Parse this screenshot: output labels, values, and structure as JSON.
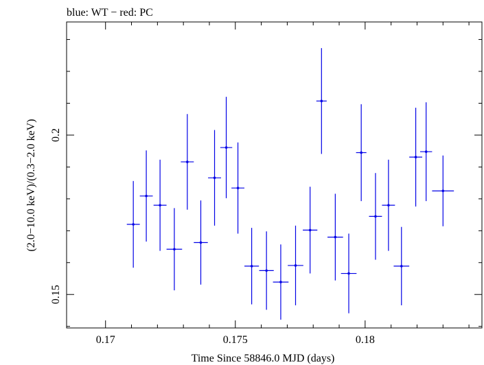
{
  "chart_data": {
    "type": "scatter",
    "title": "blue: WT − red: PC",
    "xlabel": "Time Since 58846.0 MJD (days)",
    "ylabel": "(2.0−10.0 keV)/(0.3−2.0 keV)",
    "xlim": [
      0.1685,
      0.1845
    ],
    "ylim": [
      0.1395,
      0.2355
    ],
    "x_ticks": [
      0.17,
      0.175,
      0.18
    ],
    "x_tick_labels": [
      "0.17",
      "0.175",
      "0.18"
    ],
    "y_ticks": [
      0.15,
      0.2
    ],
    "y_tick_labels": [
      "0.15",
      "0.2"
    ],
    "grid": false,
    "colors": {
      "WT": "#0000e6",
      "axis": "#000000"
    },
    "series": [
      {
        "name": "WT",
        "points": [
          {
            "x": 0.17107,
            "y": 0.172,
            "xerr": 0.00025,
            "yerr": 0.0136
          },
          {
            "x": 0.17157,
            "y": 0.1809,
            "xerr": 0.00025,
            "yerr": 0.0143
          },
          {
            "x": 0.1721,
            "y": 0.178,
            "xerr": 0.00025,
            "yerr": 0.0143
          },
          {
            "x": 0.17265,
            "y": 0.1642,
            "xerr": 0.0003,
            "yerr": 0.0129
          },
          {
            "x": 0.17315,
            "y": 0.1916,
            "xerr": 0.00025,
            "yerr": 0.015
          },
          {
            "x": 0.17367,
            "y": 0.1663,
            "xerr": 0.00027,
            "yerr": 0.0132
          },
          {
            "x": 0.1742,
            "y": 0.1866,
            "xerr": 0.00025,
            "yerr": 0.015
          },
          {
            "x": 0.17465,
            "y": 0.1961,
            "xerr": 0.00023,
            "yerr": 0.0159
          },
          {
            "x": 0.1751,
            "y": 0.1834,
            "xerr": 0.00025,
            "yerr": 0.0143
          },
          {
            "x": 0.17563,
            "y": 0.1589,
            "xerr": 0.00028,
            "yerr": 0.012
          },
          {
            "x": 0.1762,
            "y": 0.1575,
            "xerr": 0.00028,
            "yerr": 0.0123
          },
          {
            "x": 0.17675,
            "y": 0.1539,
            "xerr": 0.0003,
            "yerr": 0.0118
          },
          {
            "x": 0.17732,
            "y": 0.1591,
            "xerr": 0.0003,
            "yerr": 0.0125
          },
          {
            "x": 0.17788,
            "y": 0.1702,
            "xerr": 0.00028,
            "yerr": 0.0136
          },
          {
            "x": 0.17832,
            "y": 0.2107,
            "xerr": 0.0002,
            "yerr": 0.0166
          },
          {
            "x": 0.17885,
            "y": 0.168,
            "xerr": 0.0003,
            "yerr": 0.0136
          },
          {
            "x": 0.17937,
            "y": 0.1566,
            "xerr": 0.0003,
            "yerr": 0.0125
          },
          {
            "x": 0.17985,
            "y": 0.1945,
            "xerr": 0.0002,
            "yerr": 0.0152
          },
          {
            "x": 0.1804,
            "y": 0.1745,
            "xerr": 0.00025,
            "yerr": 0.0136
          },
          {
            "x": 0.1809,
            "y": 0.178,
            "xerr": 0.00025,
            "yerr": 0.0143
          },
          {
            "x": 0.1814,
            "y": 0.1589,
            "xerr": 0.0003,
            "yerr": 0.0123
          },
          {
            "x": 0.18195,
            "y": 0.1931,
            "xerr": 0.00025,
            "yerr": 0.0155
          },
          {
            "x": 0.18235,
            "y": 0.1948,
            "xerr": 0.00023,
            "yerr": 0.0155
          },
          {
            "x": 0.183,
            "y": 0.1825,
            "xerr": 0.00042,
            "yerr": 0.0111
          }
        ]
      }
    ]
  }
}
